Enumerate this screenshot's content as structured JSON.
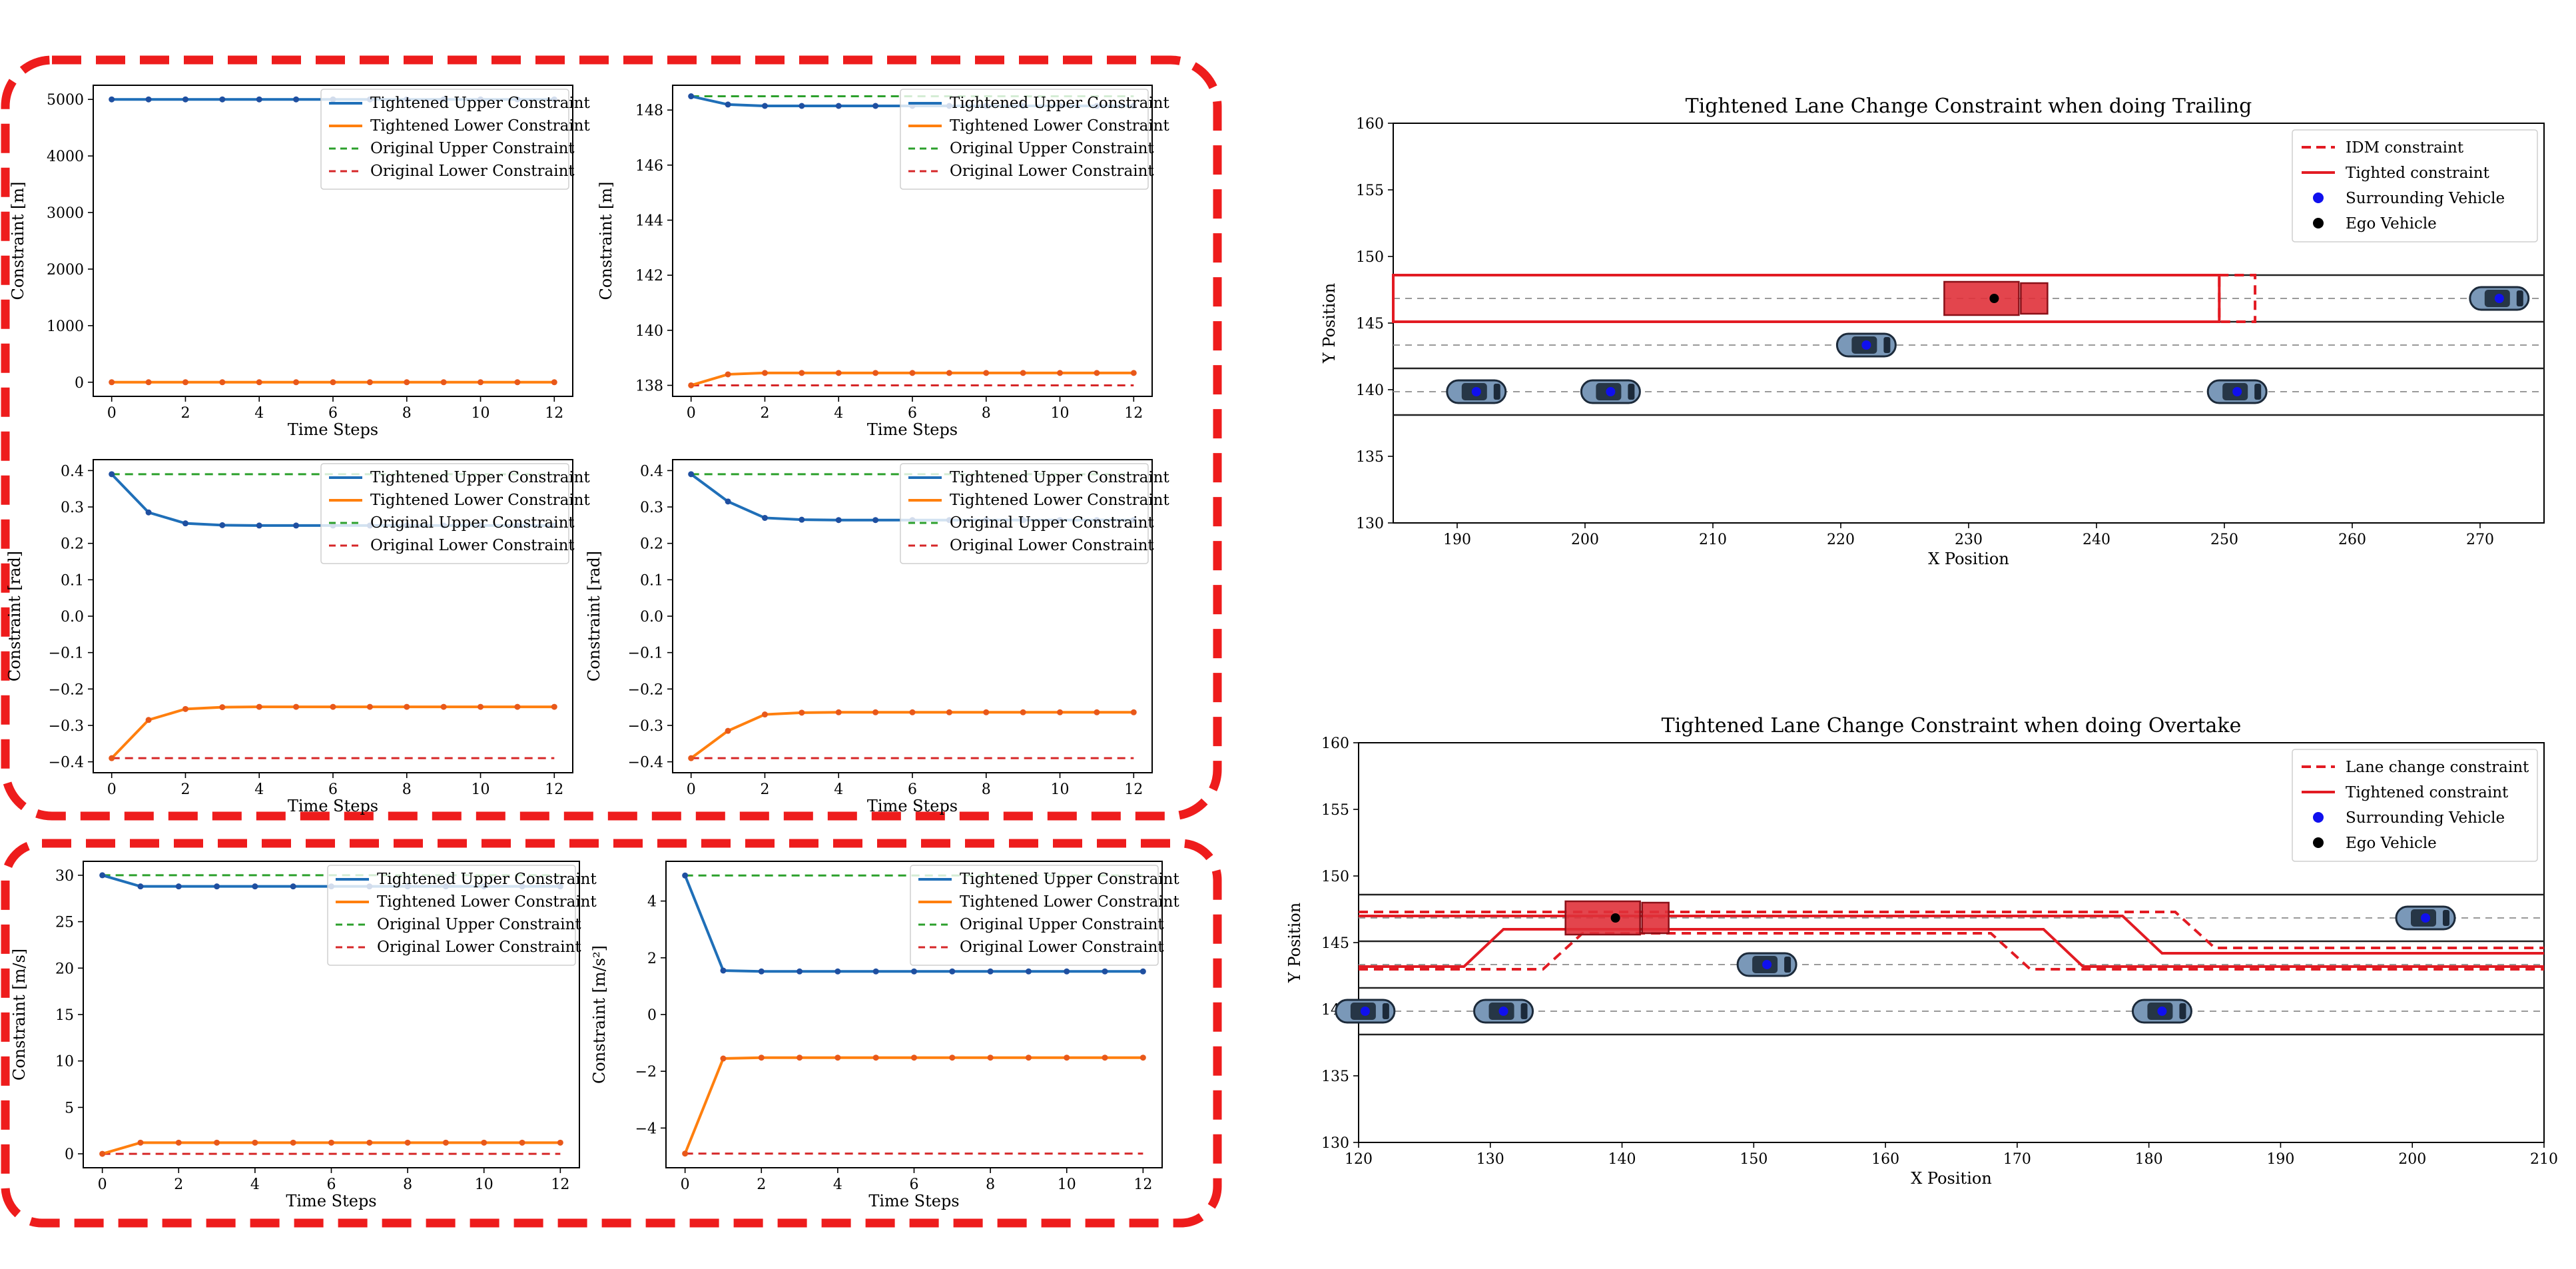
{
  "colors": {
    "upper": "#1f6fb8",
    "lower": "#ff7f0e",
    "orig_upper": "#2ca02c",
    "orig_lower": "#d62728",
    "frame": "#ee1c1c",
    "red": "#e21b23",
    "truck": "#e0313a",
    "car_body": "#7a98b8",
    "lane": "#222222",
    "dash": "#9a9a9a"
  },
  "legend_small": [
    {
      "label": "Tightened Upper Constraint",
      "key": "upper",
      "style": "solid"
    },
    {
      "label": "Tightened Lower Constraint",
      "key": "lower",
      "style": "solid"
    },
    {
      "label": "Original Upper Constraint",
      "key": "orig_upper",
      "style": "dash"
    },
    {
      "label": "Original Lower Constraint",
      "key": "orig_lower",
      "style": "dash"
    }
  ],
  "chart_data": [
    {
      "type": "line",
      "id": "x-constraint",
      "xlabel": "Time Steps",
      "ylabel": "Constraint [m]",
      "xlim": [
        -0.5,
        12.5
      ],
      "ylim": [
        -250,
        5250
      ],
      "xticks": [
        0,
        2,
        4,
        6,
        8,
        10,
        12
      ],
      "yticks": [
        {
          "v": 0,
          "t": "0"
        },
        {
          "v": 1000,
          "t": "1000"
        },
        {
          "v": 2000,
          "t": "2000"
        },
        {
          "v": 3000,
          "t": "3000"
        },
        {
          "v": 4000,
          "t": "4000"
        },
        {
          "v": 5000,
          "t": "5000"
        }
      ],
      "x": [
        0,
        1,
        2,
        3,
        4,
        5,
        6,
        7,
        8,
        9,
        10,
        11,
        12
      ],
      "series": [
        {
          "key": "upper",
          "values": [
            5000,
            5000,
            5000,
            5000,
            5000,
            5000,
            5000,
            5000,
            5000,
            5000,
            5000,
            5000,
            5000
          ],
          "markers": true
        },
        {
          "key": "lower",
          "values": [
            0,
            0,
            0,
            0,
            0,
            0,
            0,
            0,
            0,
            0,
            0,
            0,
            0
          ],
          "markers": true
        },
        {
          "key": "orig_upper",
          "values": [
            5000,
            5000,
            5000,
            5000,
            5000,
            5000,
            5000,
            5000,
            5000,
            5000,
            5000,
            5000,
            5000
          ]
        },
        {
          "key": "orig_lower",
          "values": [
            0,
            0,
            0,
            0,
            0,
            0,
            0,
            0,
            0,
            0,
            0,
            0,
            0
          ]
        }
      ]
    },
    {
      "type": "line",
      "id": "y-constraint",
      "xlabel": "Time Steps",
      "ylabel": "Constraint [m]",
      "xlim": [
        -0.5,
        12.5
      ],
      "ylim": [
        137.6,
        148.9
      ],
      "xticks": [
        0,
        2,
        4,
        6,
        8,
        10,
        12
      ],
      "yticks": [
        {
          "v": 138,
          "t": "138"
        },
        {
          "v": 140,
          "t": "140"
        },
        {
          "v": 142,
          "t": "142"
        },
        {
          "v": 144,
          "t": "144"
        },
        {
          "v": 146,
          "t": "146"
        },
        {
          "v": 148,
          "t": "148"
        }
      ],
      "x": [
        0,
        1,
        2,
        3,
        4,
        5,
        6,
        7,
        8,
        9,
        10,
        11,
        12
      ],
      "series": [
        {
          "key": "upper",
          "values": [
            148.5,
            148.2,
            148.15,
            148.15,
            148.15,
            148.15,
            148.15,
            148.15,
            148.15,
            148.15,
            148.15,
            148.15,
            148.15
          ],
          "markers": true
        },
        {
          "key": "lower",
          "values": [
            138.0,
            138.4,
            138.45,
            138.45,
            138.45,
            138.45,
            138.45,
            138.45,
            138.45,
            138.45,
            138.45,
            138.45,
            138.45
          ],
          "markers": true
        },
        {
          "key": "orig_upper",
          "values": [
            148.5,
            148.5,
            148.5,
            148.5,
            148.5,
            148.5,
            148.5,
            148.5,
            148.5,
            148.5,
            148.5,
            148.5,
            148.5
          ]
        },
        {
          "key": "orig_lower",
          "values": [
            138.0,
            138.0,
            138.0,
            138.0,
            138.0,
            138.0,
            138.0,
            138.0,
            138.0,
            138.0,
            138.0,
            138.0,
            138.0
          ]
        }
      ]
    },
    {
      "type": "line",
      "id": "heading-constraint-a",
      "xlabel": "Time Steps",
      "ylabel": "Constraint [rad]",
      "xlim": [
        -0.5,
        12.5
      ],
      "ylim": [
        -0.43,
        0.43
      ],
      "xticks": [
        0,
        2,
        4,
        6,
        8,
        10,
        12
      ],
      "yticks": [
        {
          "v": -0.4,
          "t": "−0.4"
        },
        {
          "v": -0.3,
          "t": "−0.3"
        },
        {
          "v": -0.2,
          "t": "−0.2"
        },
        {
          "v": -0.1,
          "t": "−0.1"
        },
        {
          "v": 0,
          "t": "0.0"
        },
        {
          "v": 0.1,
          "t": "0.1"
        },
        {
          "v": 0.2,
          "t": "0.2"
        },
        {
          "v": 0.3,
          "t": "0.3"
        },
        {
          "v": 0.4,
          "t": "0.4"
        }
      ],
      "x": [
        0,
        1,
        2,
        3,
        4,
        5,
        6,
        7,
        8,
        9,
        10,
        11,
        12
      ],
      "series": [
        {
          "key": "upper",
          "values": [
            0.39,
            0.285,
            0.255,
            0.25,
            0.249,
            0.249,
            0.249,
            0.249,
            0.249,
            0.249,
            0.249,
            0.249,
            0.249
          ],
          "markers": true
        },
        {
          "key": "lower",
          "values": [
            -0.39,
            -0.285,
            -0.255,
            -0.25,
            -0.249,
            -0.249,
            -0.249,
            -0.249,
            -0.249,
            -0.249,
            -0.249,
            -0.249,
            -0.249
          ],
          "markers": true
        },
        {
          "key": "orig_upper",
          "values": [
            0.39,
            0.39,
            0.39,
            0.39,
            0.39,
            0.39,
            0.39,
            0.39,
            0.39,
            0.39,
            0.39,
            0.39,
            0.39
          ]
        },
        {
          "key": "orig_lower",
          "values": [
            -0.39,
            -0.39,
            -0.39,
            -0.39,
            -0.39,
            -0.39,
            -0.39,
            -0.39,
            -0.39,
            -0.39,
            -0.39,
            -0.39,
            -0.39
          ]
        }
      ]
    },
    {
      "type": "line",
      "id": "heading-constraint-b",
      "xlabel": "Time Steps",
      "ylabel": "Constraint [rad]",
      "xlim": [
        -0.5,
        12.5
      ],
      "ylim": [
        -0.43,
        0.43
      ],
      "xticks": [
        0,
        2,
        4,
        6,
        8,
        10,
        12
      ],
      "yticks": [
        {
          "v": -0.4,
          "t": "−0.4"
        },
        {
          "v": -0.3,
          "t": "−0.3"
        },
        {
          "v": -0.2,
          "t": "−0.2"
        },
        {
          "v": -0.1,
          "t": "−0.1"
        },
        {
          "v": 0,
          "t": "0.0"
        },
        {
          "v": 0.1,
          "t": "0.1"
        },
        {
          "v": 0.2,
          "t": "0.2"
        },
        {
          "v": 0.3,
          "t": "0.3"
        },
        {
          "v": 0.4,
          "t": "0.4"
        }
      ],
      "x": [
        0,
        1,
        2,
        3,
        4,
        5,
        6,
        7,
        8,
        9,
        10,
        11,
        12
      ],
      "series": [
        {
          "key": "upper",
          "values": [
            0.39,
            0.315,
            0.27,
            0.265,
            0.264,
            0.264,
            0.264,
            0.264,
            0.264,
            0.264,
            0.264,
            0.264,
            0.264
          ],
          "markers": true
        },
        {
          "key": "lower",
          "values": [
            -0.39,
            -0.315,
            -0.27,
            -0.265,
            -0.264,
            -0.264,
            -0.264,
            -0.264,
            -0.264,
            -0.264,
            -0.264,
            -0.264,
            -0.264
          ],
          "markers": true
        },
        {
          "key": "orig_upper",
          "values": [
            0.39,
            0.39,
            0.39,
            0.39,
            0.39,
            0.39,
            0.39,
            0.39,
            0.39,
            0.39,
            0.39,
            0.39,
            0.39
          ]
        },
        {
          "key": "orig_lower",
          "values": [
            -0.39,
            -0.39,
            -0.39,
            -0.39,
            -0.39,
            -0.39,
            -0.39,
            -0.39,
            -0.39,
            -0.39,
            -0.39,
            -0.39,
            -0.39
          ]
        }
      ]
    },
    {
      "type": "line",
      "id": "velocity-constraint",
      "xlabel": "Time Steps",
      "ylabel": "Constraint [m/s]",
      "xlim": [
        -0.5,
        12.5
      ],
      "ylim": [
        -1.5,
        31.5
      ],
      "xticks": [
        0,
        2,
        4,
        6,
        8,
        10,
        12
      ],
      "yticks": [
        {
          "v": 0,
          "t": "0"
        },
        {
          "v": 5,
          "t": "5"
        },
        {
          "v": 10,
          "t": "10"
        },
        {
          "v": 15,
          "t": "15"
        },
        {
          "v": 20,
          "t": "20"
        },
        {
          "v": 25,
          "t": "25"
        },
        {
          "v": 30,
          "t": "30"
        }
      ],
      "x": [
        0,
        1,
        2,
        3,
        4,
        5,
        6,
        7,
        8,
        9,
        10,
        11,
        12
      ],
      "series": [
        {
          "key": "upper",
          "values": [
            30,
            28.8,
            28.8,
            28.8,
            28.8,
            28.8,
            28.8,
            28.8,
            28.8,
            28.8,
            28.8,
            28.8,
            28.8
          ],
          "markers": true
        },
        {
          "key": "lower",
          "values": [
            0,
            1.2,
            1.2,
            1.2,
            1.2,
            1.2,
            1.2,
            1.2,
            1.2,
            1.2,
            1.2,
            1.2,
            1.2
          ],
          "markers": true
        },
        {
          "key": "orig_upper",
          "values": [
            30,
            30,
            30,
            30,
            30,
            30,
            30,
            30,
            30,
            30,
            30,
            30,
            30
          ]
        },
        {
          "key": "orig_lower",
          "values": [
            0,
            0,
            0,
            0,
            0,
            0,
            0,
            0,
            0,
            0,
            0,
            0,
            0
          ]
        }
      ]
    },
    {
      "type": "line",
      "id": "acceleration-constraint",
      "xlabel": "Time Steps",
      "ylabel": "Constraint [m/s²]",
      "xlim": [
        -0.5,
        12.5
      ],
      "ylim": [
        -5.4,
        5.4
      ],
      "xticks": [
        0,
        2,
        4,
        6,
        8,
        10,
        12
      ],
      "yticks": [
        {
          "v": -4,
          "t": "−4"
        },
        {
          "v": -2,
          "t": "−2"
        },
        {
          "v": 0,
          "t": "0"
        },
        {
          "v": 2,
          "t": "2"
        },
        {
          "v": 4,
          "t": "4"
        }
      ],
      "x": [
        0,
        1,
        2,
        3,
        4,
        5,
        6,
        7,
        8,
        9,
        10,
        11,
        12
      ],
      "series": [
        {
          "key": "upper",
          "values": [
            4.9,
            1.55,
            1.52,
            1.52,
            1.52,
            1.52,
            1.52,
            1.52,
            1.52,
            1.52,
            1.52,
            1.52,
            1.52
          ],
          "markers": true
        },
        {
          "key": "lower",
          "values": [
            -4.9,
            -1.55,
            -1.52,
            -1.52,
            -1.52,
            -1.52,
            -1.52,
            -1.52,
            -1.52,
            -1.52,
            -1.52,
            -1.52,
            -1.52
          ],
          "markers": true
        },
        {
          "key": "orig_upper",
          "values": [
            4.9,
            4.9,
            4.9,
            4.9,
            4.9,
            4.9,
            4.9,
            4.9,
            4.9,
            4.9,
            4.9,
            4.9,
            4.9
          ]
        },
        {
          "key": "orig_lower",
          "values": [
            -4.9,
            -4.9,
            -4.9,
            -4.9,
            -4.9,
            -4.9,
            -4.9,
            -4.9,
            -4.9,
            -4.9,
            -4.9,
            -4.9,
            -4.9
          ]
        }
      ]
    },
    {
      "type": "scatter",
      "id": "trailing-scene",
      "title": "Tightened Lane Change Constraint when doing Trailing",
      "xlabel": "X Position",
      "ylabel": "Y Position",
      "xlim": [
        185,
        275
      ],
      "ylim": [
        130,
        160
      ],
      "xticks": [
        190,
        200,
        210,
        220,
        230,
        240,
        250,
        260,
        270
      ],
      "yticks": [
        130,
        135,
        140,
        145,
        150,
        155,
        160
      ],
      "lane_lines": [
        138.1,
        141.6,
        145.1,
        148.6
      ],
      "center_lines": [
        139.85,
        143.35,
        146.85
      ],
      "legend": [
        {
          "label": "IDM constraint",
          "style": "red-dash"
        },
        {
          "label": "Tighted constraint",
          "style": "red-solid"
        },
        {
          "label": "Surrounding Vehicle",
          "style": "blue-dot"
        },
        {
          "label": "Ego Vehicle",
          "style": "black-dot"
        }
      ],
      "surrounding_vehicles": [
        [
          191.5,
          139.85
        ],
        [
          202,
          139.85
        ],
        [
          222,
          143.35
        ],
        [
          251,
          139.85
        ],
        [
          271.5,
          146.85
        ]
      ],
      "ego_vehicle": [
        232,
        146.85
      ],
      "tightened_box": {
        "x": [
          185,
          249.6
        ],
        "y": [
          145.1,
          148.6
        ]
      },
      "idm_box": {
        "x": [
          249.6,
          252.4
        ],
        "y": [
          145.1,
          148.6
        ]
      }
    },
    {
      "type": "scatter",
      "id": "overtake-scene",
      "title": "Tightened Lane Change Constraint when doing Overtake",
      "xlabel": "X Position",
      "ylabel": "Y Position",
      "xlim": [
        120,
        210
      ],
      "ylim": [
        130,
        160
      ],
      "xticks": [
        120,
        130,
        140,
        150,
        160,
        170,
        180,
        190,
        200,
        210
      ],
      "yticks": [
        130,
        135,
        140,
        145,
        150,
        155,
        160
      ],
      "lane_lines": [
        138.1,
        141.6,
        145.1,
        148.6
      ],
      "center_lines": [
        139.85,
        143.35,
        146.85
      ],
      "legend": [
        {
          "label": "Lane change constraint",
          "style": "red-dash"
        },
        {
          "label": "Tightened constraint",
          "style": "red-solid"
        },
        {
          "label": "Surrounding Vehicle",
          "style": "blue-dot"
        },
        {
          "label": "Ego Vehicle",
          "style": "black-dot"
        }
      ],
      "surrounding_vehicles": [
        [
          120.5,
          139.85
        ],
        [
          131,
          139.85
        ],
        [
          151,
          143.35
        ],
        [
          181,
          139.85
        ],
        [
          201,
          146.85
        ]
      ],
      "ego_vehicle": [
        139.5,
        146.85
      ],
      "dashed_curves": [
        [
          [
            120,
            147.3
          ],
          [
            182,
            147.3
          ],
          [
            185,
            144.6
          ],
          [
            210,
            144.6
          ]
        ],
        [
          [
            120,
            143.0
          ],
          [
            134,
            143.0
          ],
          [
            137,
            145.7
          ],
          [
            168,
            145.7
          ],
          [
            171,
            143.0
          ],
          [
            210,
            143.0
          ]
        ]
      ],
      "solid_curves": [
        [
          [
            120,
            147.0
          ],
          [
            178,
            147.0
          ],
          [
            181,
            144.2
          ],
          [
            210,
            144.2
          ]
        ],
        [
          [
            120,
            143.2
          ],
          [
            128,
            143.2
          ],
          [
            131,
            146.0
          ],
          [
            172,
            146.0
          ],
          [
            175,
            143.2
          ],
          [
            210,
            143.2
          ]
        ]
      ]
    }
  ]
}
